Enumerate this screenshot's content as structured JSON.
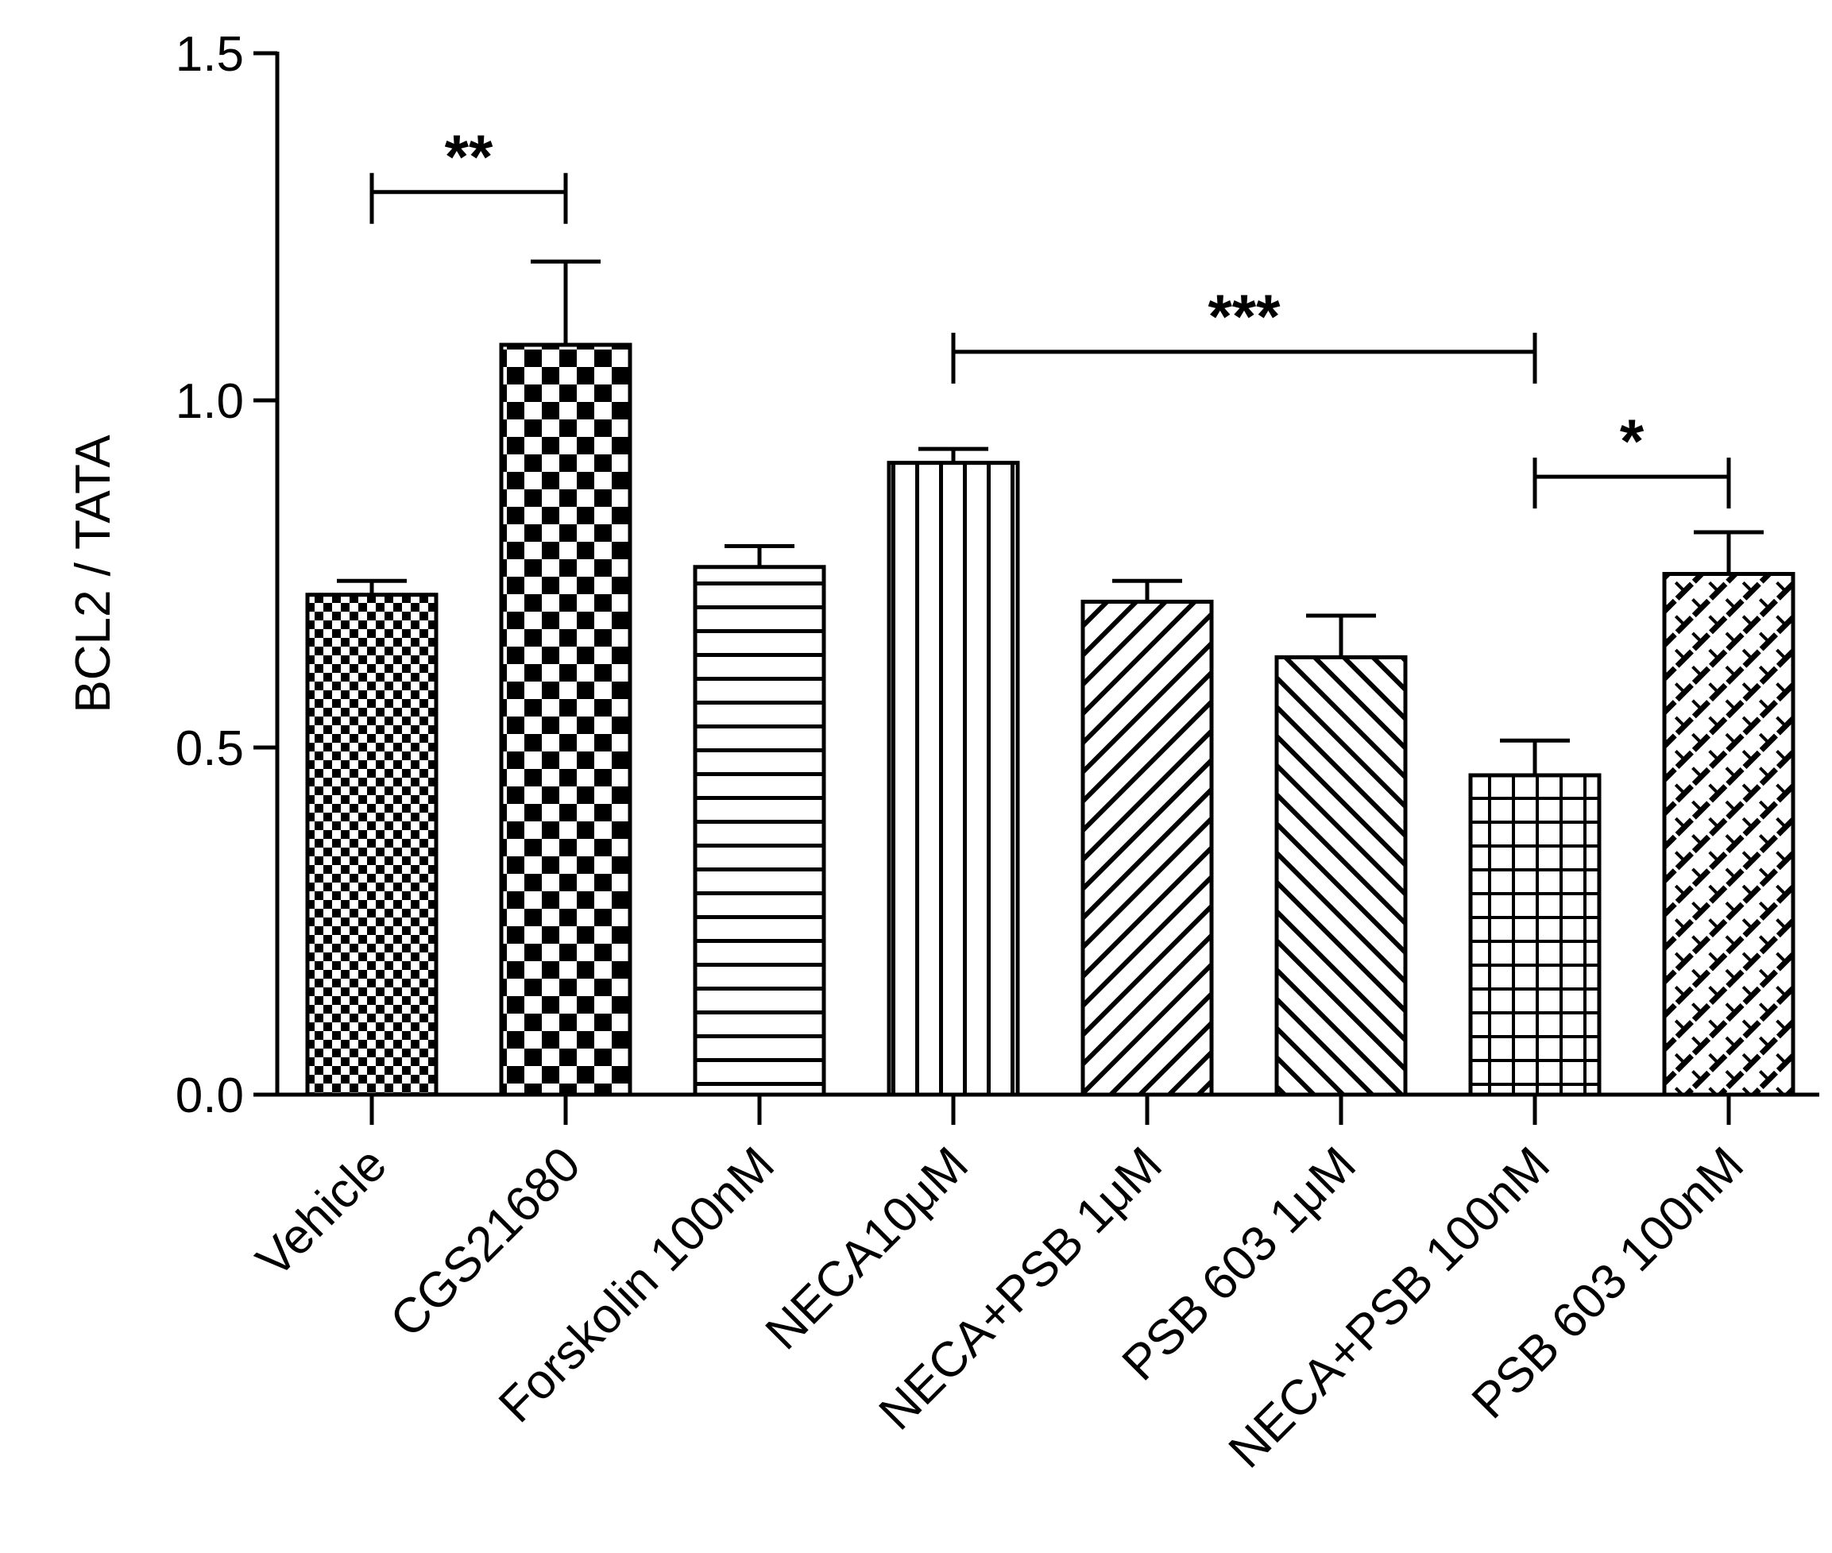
{
  "chart_data": {
    "type": "bar",
    "title": "",
    "xlabel": "",
    "ylabel": "BCL2 / TATA",
    "ylim": [
      0,
      1.5
    ],
    "yticks": [
      "0.0",
      "0.5",
      "1.0",
      "1.5"
    ],
    "categories": [
      "Vehicle",
      "CGS21680",
      "Forskolin 100nM",
      "NECA10μM",
      "NECA+PSB 1μM",
      "PSB 603 1μM",
      "NECA+PSB 100nM",
      "PSB 603 100nM"
    ],
    "values": [
      0.72,
      1.08,
      0.76,
      0.91,
      0.71,
      0.63,
      0.46,
      0.75
    ],
    "errors": [
      0.02,
      0.12,
      0.03,
      0.02,
      0.03,
      0.06,
      0.05,
      0.06
    ],
    "patterns": [
      "fine-checker",
      "coarse-checker",
      "horizontal-lines",
      "vertical-lines",
      "diagonal-up",
      "diagonal-down",
      "grid",
      "crosshatch"
    ],
    "significance": [
      {
        "from": 0,
        "to": 1,
        "label": "**",
        "y": 1.3
      },
      {
        "from": 3,
        "to": 6,
        "label": "***",
        "y": 1.07
      },
      {
        "from": 6,
        "to": 7,
        "label": "*",
        "y": 0.89
      }
    ]
  }
}
